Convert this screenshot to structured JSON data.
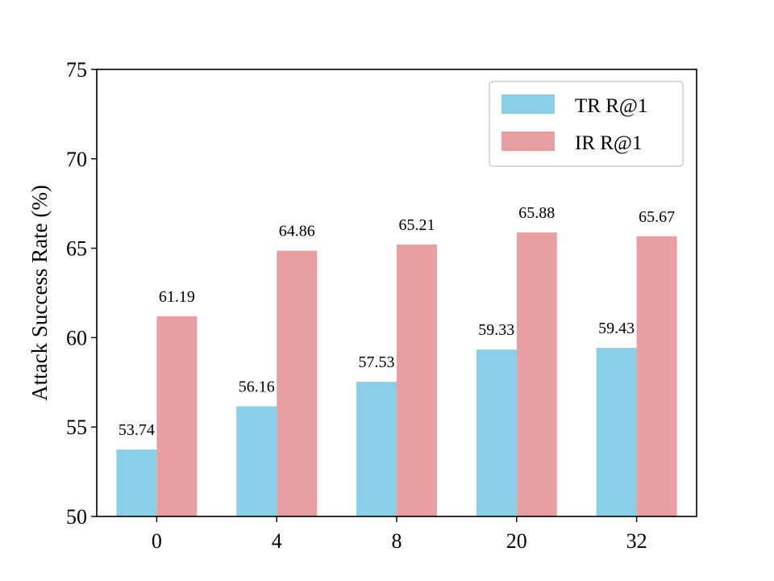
{
  "chart_data": {
    "type": "bar",
    "title": "",
    "xlabel": "",
    "ylabel": "Attack Success Rate (%)",
    "ylim": [
      50,
      75
    ],
    "yticks": [
      50,
      55,
      60,
      65,
      70,
      75
    ],
    "categories": [
      "0",
      "4",
      "8",
      "20",
      "32"
    ],
    "series": [
      {
        "name": "TR R@1",
        "color": "#89CFE8",
        "values": [
          53.74,
          56.16,
          57.53,
          59.33,
          59.43
        ],
        "labels": [
          "53.74",
          "56.16",
          "57.53",
          "59.33",
          "59.43"
        ]
      },
      {
        "name": "IR R@1",
        "color": "#E89FA2",
        "values": [
          61.19,
          64.86,
          65.21,
          65.88,
          65.67
        ],
        "labels": [
          "61.19",
          "64.86",
          "65.21",
          "65.88",
          "65.67"
        ]
      }
    ],
    "legend_position": "top-right",
    "grid": false
  }
}
